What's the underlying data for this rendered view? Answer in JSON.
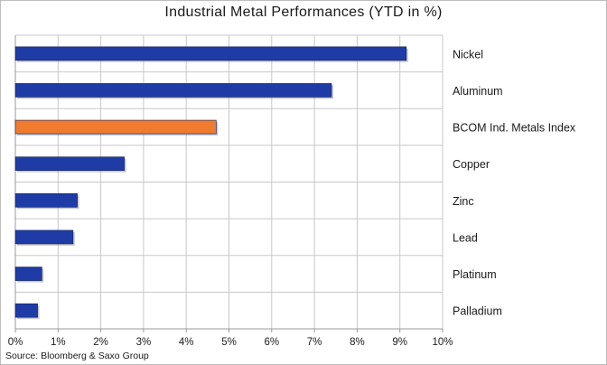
{
  "chart_data": {
    "type": "bar",
    "orientation": "horizontal",
    "title": "Industrial Metal Performances (YTD in %)",
    "source": "Source: Bloomberg & Saxo Group",
    "categories": [
      "Nickel",
      "Aluminum",
      "BCOM Ind. Metals Index",
      "Copper",
      "Zinc",
      "Lead",
      "Platinum",
      "Palladium"
    ],
    "values": [
      9.15,
      7.4,
      4.7,
      2.55,
      1.45,
      1.35,
      0.62,
      0.52
    ],
    "colors": [
      "#1f3ca6",
      "#1f3ca6",
      "#f07a2e",
      "#1f3ca6",
      "#1f3ca6",
      "#1f3ca6",
      "#1f3ca6",
      "#1f3ca6"
    ],
    "xlim": [
      0,
      10
    ],
    "xticks": [
      "0%",
      "1%",
      "2%",
      "3%",
      "4%",
      "5%",
      "6%",
      "7%",
      "8%",
      "9%",
      "10%"
    ],
    "grid": true,
    "category_labels_position": "right"
  }
}
